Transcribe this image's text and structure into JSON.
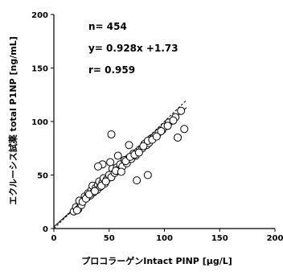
{
  "chart_data": {
    "type": "scatter",
    "xlabel": "プロコラーゲンIntact PINP [μg/L]",
    "ylabel": "エクルーシス試薬 total P1NP [ng/mL]",
    "xlim": [
      0,
      200
    ],
    "ylim": [
      0,
      200
    ],
    "x_ticks": [
      "0",
      "50",
      "100",
      "150",
      "200"
    ],
    "y_ticks": [
      "0",
      "50",
      "100",
      "150",
      "200"
    ],
    "grid": false,
    "legend": "none",
    "annotations": [
      "n= 454",
      "y= 0.928x +1.73",
      "r= 0.959"
    ],
    "regression": {
      "slope": 0.928,
      "intercept": 1.73
    },
    "identity_line": true,
    "colors": {
      "marker_fill": "#ffffff",
      "marker_edge": "#000000",
      "line": "#000000"
    },
    "series": [
      {
        "x": [
          18,
          20,
          22,
          24,
          25,
          27,
          28,
          30,
          31,
          33,
          34,
          35,
          36,
          38,
          39,
          40,
          41,
          42,
          44,
          45,
          46,
          48,
          50,
          52,
          53,
          55,
          57,
          58,
          60,
          62,
          64,
          66,
          68,
          70,
          72,
          74,
          76,
          78,
          80,
          82,
          84,
          86,
          88,
          90,
          92,
          95,
          98,
          100,
          104,
          110,
          115,
          118,
          21,
          23,
          26,
          29,
          32,
          37,
          43,
          47,
          51,
          56,
          61,
          65,
          69,
          73,
          77,
          81,
          85,
          89,
          93,
          97,
          103,
          108
        ],
        "y": [
          16,
          20,
          18,
          24,
          22,
          27,
          30,
          29,
          33,
          31,
          36,
          40,
          34,
          38,
          36,
          41,
          44,
          39,
          43,
          47,
          42,
          46,
          50,
          48,
          56,
          52,
          57,
          55,
          60,
          58,
          64,
          61,
          66,
          65,
          70,
          68,
          72,
          74,
          75,
          79,
          78,
          80,
          84,
          85,
          87,
          90,
          92,
          95,
          99,
          104,
          110,
          93,
          17,
          26,
          25,
          28,
          32,
          35,
          40,
          44,
          62,
          54,
          53,
          63,
          67,
          69,
          71,
          77,
          82,
          83,
          86,
          91,
          96,
          101
        ]
      },
      {
        "x": [
          52,
          44,
          68,
          85,
          40,
          75,
          58,
          112
        ],
        "y": [
          88,
          60,
          78,
          50,
          58,
          45,
          68,
          85
        ]
      }
    ]
  }
}
